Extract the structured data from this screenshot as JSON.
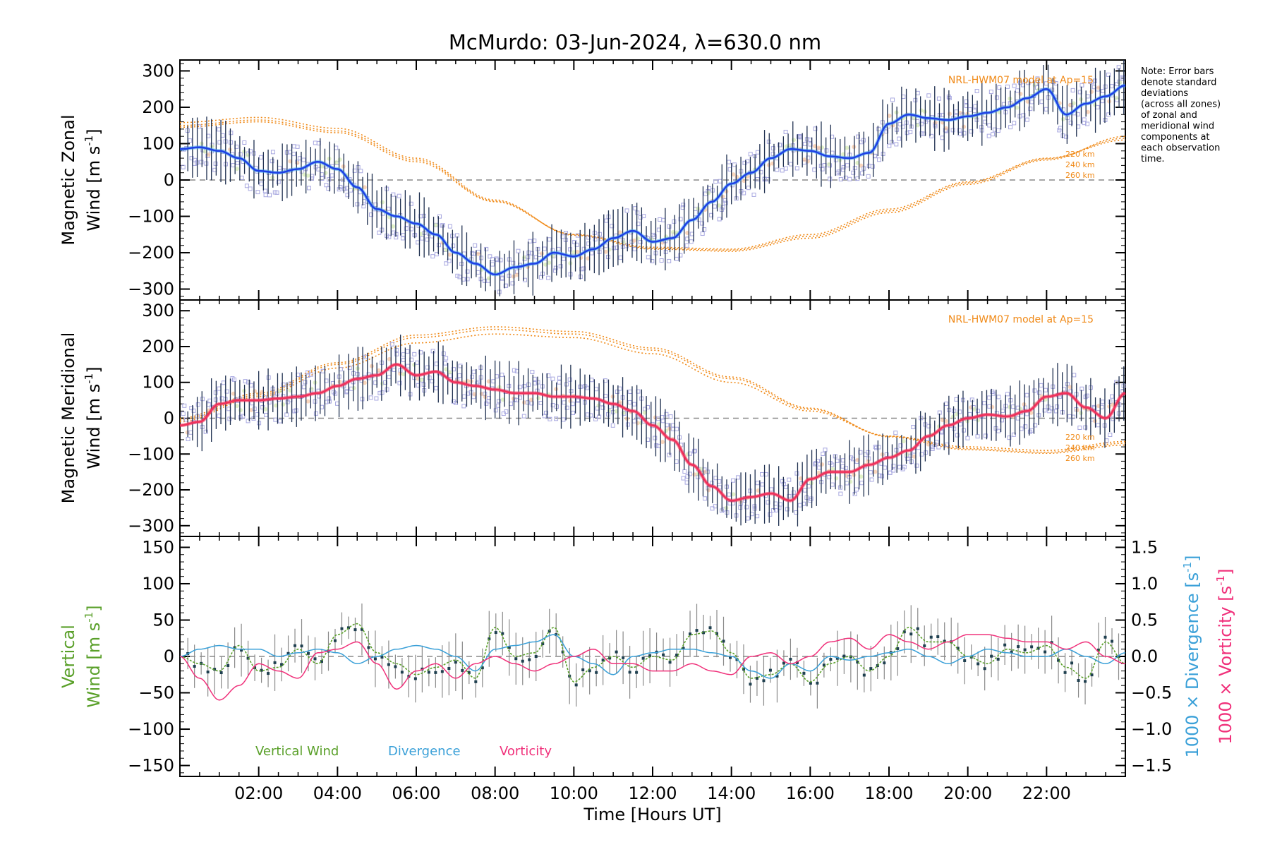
{
  "title": "McMurdo: 03-Jun-2024, λ=630.0 nm",
  "note": "Note: Error bars denote standard deviations (across all zones) of zonal and meridional wind components at each observation time.",
  "xlabel": "Time [Hours UT]",
  "xticks": [
    "02:00",
    "04:00",
    "06:00",
    "08:00",
    "10:00",
    "12:00",
    "14:00",
    "16:00",
    "18:00",
    "20:00",
    "22:00"
  ],
  "panels": {
    "zonal": {
      "ylabel_line1": "Magnetic Zonal",
      "ylabel_line2": "Wind [m s",
      "ylabel_sup": "-1",
      "ylabel_close": "]",
      "yticks": [
        "300",
        "200",
        "100",
        "0",
        "−100",
        "−200",
        "−300"
      ],
      "model_label": "NRL-HWM07 model at Ap=15",
      "alt_labels": [
        "220 km",
        "240 km",
        "260 km"
      ]
    },
    "meridional": {
      "ylabel_line1": "Magnetic Meridional",
      "ylabel_line2": "Wind [m s",
      "ylabel_sup": "-1",
      "ylabel_close": "]",
      "yticks": [
        "300",
        "200",
        "100",
        "0",
        "−100",
        "−200",
        "−300"
      ],
      "model_label": "NRL-HWM07 model at Ap=15",
      "alt_labels": [
        "220 km",
        "240 km",
        "260 km"
      ]
    },
    "vertical": {
      "ylabel_line1": "Vertical",
      "ylabel_line2": "Wind [m s",
      "ylabel_sup": "-1",
      "ylabel_close": "]",
      "yticks": [
        "150",
        "100",
        "50",
        "0",
        "−50",
        "−100",
        "−150"
      ],
      "right_yticks": [
        "1.5",
        "1.0",
        "0.5",
        "0.0",
        "−0.5",
        "−1.0",
        "−1.5"
      ],
      "right_label_div": "1000 × Divergence [s",
      "right_label_vort": "1000 × Vorticity [s",
      "right_sup": "-1",
      "right_close": "]",
      "legend": [
        "Vertical Wind",
        "Divergence",
        "Vorticity"
      ]
    }
  },
  "colors": {
    "zonal_line": "#1e3fe6",
    "zonal_light": "#3aa0ee",
    "meridional_line": "#f0305a",
    "model": "#f08a18",
    "vertical": "#5aa02a",
    "divergence": "#3aa0d8",
    "vorticity": "#f0307a",
    "scatter": "#a8a8e0",
    "errorbar": "#1f3050"
  },
  "chart_data": [
    {
      "type": "line",
      "name": "zonal",
      "x_unit": "hours UT",
      "xlim": [
        0,
        24
      ],
      "ylim": [
        -330,
        330
      ],
      "x": [
        0.0,
        0.5,
        1.0,
        1.5,
        2.0,
        2.5,
        3.0,
        3.5,
        4.0,
        4.5,
        5.0,
        5.5,
        6.0,
        6.5,
        7.0,
        7.5,
        8.0,
        8.5,
        9.0,
        9.5,
        10.0,
        10.5,
        11.0,
        11.5,
        12.0,
        12.5,
        13.0,
        13.5,
        14.0,
        14.5,
        15.0,
        15.5,
        16.0,
        16.5,
        17.0,
        17.5,
        18.0,
        18.5,
        19.0,
        19.5,
        20.0,
        20.5,
        21.0,
        21.5,
        22.0,
        22.5,
        23.0,
        23.5,
        24.0
      ],
      "y": [
        85,
        90,
        80,
        60,
        25,
        20,
        30,
        50,
        30,
        -20,
        -80,
        -100,
        -120,
        -150,
        -200,
        -230,
        -260,
        -240,
        -230,
        -200,
        -210,
        -190,
        -160,
        -140,
        -170,
        -160,
        -110,
        -60,
        -10,
        20,
        60,
        85,
        80,
        65,
        60,
        75,
        155,
        180,
        170,
        165,
        175,
        185,
        200,
        225,
        250,
        180,
        210,
        230,
        260
      ],
      "model_curves": [
        {
          "label": "220 km",
          "x": [
            0,
            2,
            4,
            6,
            8,
            10,
            12,
            14,
            16,
            18,
            20,
            22,
            24
          ],
          "y": [
            145,
            160,
            130,
            50,
            -60,
            -150,
            -185,
            -190,
            -150,
            -80,
            -5,
            60,
            110
          ]
        },
        {
          "label": "240 km",
          "x": [
            0,
            2,
            4,
            6,
            8,
            10,
            12,
            14,
            16,
            18,
            20,
            22,
            24
          ],
          "y": [
            150,
            165,
            135,
            55,
            -58,
            -150,
            -188,
            -193,
            -155,
            -85,
            -8,
            58,
            115
          ]
        },
        {
          "label": "260 km",
          "x": [
            0,
            2,
            4,
            6,
            8,
            10,
            12,
            14,
            16,
            18,
            20,
            22,
            24
          ],
          "y": [
            158,
            172,
            142,
            60,
            -55,
            -152,
            -190,
            -196,
            -160,
            -90,
            -12,
            55,
            120
          ]
        }
      ]
    },
    {
      "type": "line",
      "name": "meridional",
      "x_unit": "hours UT",
      "xlim": [
        0,
        24
      ],
      "ylim": [
        -330,
        330
      ],
      "x": [
        0.0,
        0.5,
        1.0,
        1.5,
        2.0,
        2.5,
        3.0,
        3.5,
        4.0,
        4.5,
        5.0,
        5.5,
        6.0,
        6.5,
        7.0,
        7.5,
        8.0,
        8.5,
        9.0,
        9.5,
        10.0,
        10.5,
        11.0,
        11.5,
        12.0,
        12.5,
        13.0,
        13.5,
        14.0,
        14.5,
        15.0,
        15.5,
        16.0,
        16.5,
        17.0,
        17.5,
        18.0,
        18.5,
        19.0,
        19.5,
        20.0,
        20.5,
        21.0,
        21.5,
        22.0,
        22.5,
        23.0,
        23.5,
        24.0
      ],
      "y": [
        -20,
        -10,
        40,
        50,
        50,
        55,
        60,
        70,
        90,
        110,
        120,
        150,
        120,
        130,
        100,
        90,
        80,
        70,
        70,
        60,
        60,
        55,
        40,
        20,
        -20,
        -60,
        -130,
        -190,
        -230,
        -220,
        -210,
        -230,
        -170,
        -150,
        -150,
        -130,
        -110,
        -90,
        -50,
        -20,
        0,
        10,
        5,
        20,
        60,
        70,
        30,
        0,
        70
      ],
      "model_curves": [
        {
          "label": "220 km",
          "x": [
            0,
            2,
            4,
            6,
            8,
            10,
            12,
            14,
            16,
            18,
            20,
            22,
            24
          ],
          "y": [
            -10,
            60,
            140,
            210,
            235,
            225,
            180,
            100,
            20,
            -50,
            -80,
            -90,
            -65
          ]
        },
        {
          "label": "240 km",
          "x": [
            0,
            2,
            4,
            6,
            8,
            10,
            12,
            14,
            16,
            18,
            20,
            22,
            24
          ],
          "y": [
            -5,
            65,
            150,
            225,
            248,
            235,
            190,
            110,
            25,
            -50,
            -85,
            -95,
            -70
          ]
        },
        {
          "label": "260 km",
          "x": [
            0,
            2,
            4,
            6,
            8,
            10,
            12,
            14,
            16,
            18,
            20,
            22,
            24
          ],
          "y": [
            0,
            70,
            155,
            232,
            255,
            242,
            196,
            115,
            28,
            -52,
            -88,
            -98,
            -75
          ]
        }
      ]
    },
    {
      "type": "line",
      "name": "vertical",
      "x_unit": "hours UT",
      "xlim": [
        0,
        24
      ],
      "ylim": [
        -165,
        165
      ],
      "right_ylim": [
        -1.65,
        1.65
      ],
      "series": [
        {
          "name": "Vertical Wind",
          "axis": "left",
          "x": [
            0.0,
            0.5,
            1.0,
            1.5,
            2.0,
            2.5,
            3.0,
            3.5,
            4.0,
            4.5,
            5.0,
            5.5,
            6.0,
            6.5,
            7.0,
            7.5,
            8.0,
            8.5,
            9.0,
            9.5,
            10.0,
            10.5,
            11.0,
            11.5,
            12.0,
            12.5,
            13.0,
            13.5,
            14.0,
            14.5,
            15.0,
            15.5,
            16.0,
            16.5,
            17.0,
            17.5,
            18.0,
            18.5,
            19.0,
            19.5,
            20.0,
            20.5,
            21.0,
            21.5,
            22.0,
            22.5,
            23.0,
            23.5,
            24.0
          ],
          "y": [
            0,
            -10,
            -20,
            15,
            -20,
            -15,
            10,
            -10,
            30,
            45,
            5,
            -10,
            -25,
            -15,
            -5,
            -30,
            40,
            0,
            5,
            40,
            -35,
            -15,
            0,
            -15,
            0,
            -5,
            30,
            35,
            5,
            -30,
            -25,
            -10,
            -35,
            -10,
            0,
            -20,
            0,
            40,
            20,
            20,
            0,
            -10,
            10,
            5,
            15,
            -15,
            -30,
            20,
            -10
          ]
        },
        {
          "name": "Divergence",
          "axis": "right",
          "x": [
            0.0,
            0.5,
            1.0,
            1.5,
            2.0,
            2.5,
            3.0,
            3.5,
            4.0,
            4.5,
            5.0,
            5.5,
            6.0,
            6.5,
            7.0,
            7.5,
            8.0,
            8.5,
            9.0,
            9.5,
            10.0,
            10.5,
            11.0,
            11.5,
            12.0,
            12.5,
            13.0,
            13.5,
            14.0,
            14.5,
            15.0,
            15.5,
            16.0,
            16.5,
            17.0,
            17.5,
            18.0,
            18.5,
            19.0,
            19.5,
            20.0,
            20.5,
            21.0,
            21.5,
            22.0,
            22.5,
            23.0,
            23.5,
            24.0
          ],
          "y": [
            0.0,
            0.1,
            0.15,
            0.1,
            0.1,
            0.0,
            0.05,
            0.1,
            0.05,
            -0.1,
            0.0,
            0.1,
            0.15,
            0.1,
            0.0,
            -0.2,
            0.1,
            0.15,
            0.2,
            0.3,
            0.0,
            -0.1,
            -0.25,
            0.0,
            0.05,
            0.1,
            0.1,
            0.05,
            0.0,
            -0.2,
            -0.3,
            -0.1,
            -0.2,
            0.0,
            -0.05,
            0.0,
            0.05,
            0.1,
            0.0,
            -0.1,
            0.0,
            0.1,
            0.05,
            0.0,
            0.0,
            0.1,
            0.0,
            -0.1,
            0.05
          ]
        },
        {
          "name": "Vorticity",
          "axis": "right",
          "x": [
            0.0,
            0.5,
            1.0,
            1.5,
            2.0,
            2.5,
            3.0,
            3.5,
            4.0,
            4.5,
            5.0,
            5.5,
            6.0,
            6.5,
            7.0,
            7.5,
            8.0,
            8.5,
            9.0,
            9.5,
            10.0,
            10.5,
            11.0,
            11.5,
            12.0,
            12.5,
            13.0,
            13.5,
            14.0,
            14.5,
            15.0,
            15.5,
            16.0,
            16.5,
            17.0,
            17.5,
            18.0,
            18.5,
            19.0,
            19.5,
            20.0,
            20.5,
            21.0,
            21.5,
            22.0,
            22.5,
            23.0,
            23.5,
            24.0
          ],
          "y": [
            0.0,
            -0.3,
            -0.6,
            -0.4,
            -0.1,
            -0.2,
            -0.3,
            0.05,
            0.1,
            0.2,
            -0.1,
            -0.45,
            -0.2,
            -0.1,
            -0.3,
            -0.1,
            0.0,
            -0.1,
            -0.2,
            -0.1,
            0.0,
            0.1,
            -0.1,
            -0.1,
            -0.2,
            -0.2,
            -0.1,
            -0.2,
            -0.25,
            0.0,
            0.05,
            -0.1,
            0.0,
            0.2,
            0.25,
            0.1,
            0.3,
            0.2,
            0.1,
            0.2,
            0.3,
            0.3,
            0.25,
            0.2,
            0.2,
            0.1,
            0.2,
            0.0,
            -0.1
          ]
        }
      ]
    }
  ]
}
